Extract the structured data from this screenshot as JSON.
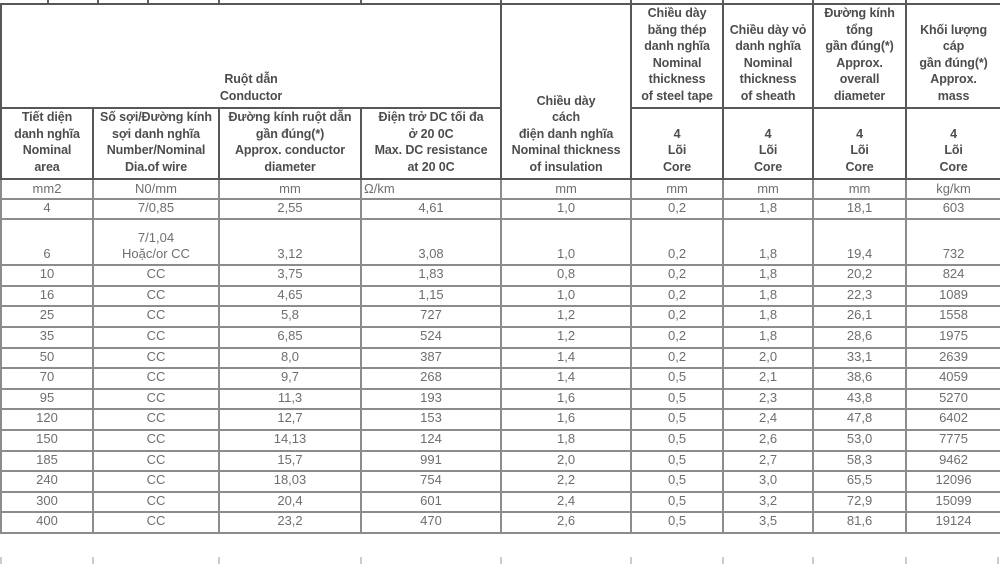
{
  "page": {
    "background": "#ffffff",
    "text_color": "#6e6e6e",
    "header_text_color": "#4d4d4d",
    "border_color": "#8c8c8c",
    "header_border_color": "#575757"
  },
  "table": {
    "headers": {
      "group_conductor": "Ruột dẫn\nConductor",
      "col_nominal_area": "Tiết diện\ndanh nghĩa\nNominal\narea",
      "col_wire": "Số sợi/Đường kính\nsợi danh nghĩa\nNumber/Nominal\nDia.of wire",
      "col_conductor_diameter": "Đường kính ruột dẫn\ngần đúng(*)\nApprox. conductor\ndiameter",
      "col_dc_resistance": "Điện trở DC tối đa\nở 20 0C\nMax. DC resistance\nat 20 0C",
      "col_insulation": "Chiều dày\ncách\nđiện danh nghĩa\nNominal thickness\nof insulation",
      "col_steel_tape": "Chiều dày\nbăng thép\ndanh nghĩa\nNominal\nthickness\nof steel tape",
      "col_sheath": "Chiều dày vỏ\ndanh nghĩa\nNominal\nthickness\nof sheath",
      "col_overall_diameter": "Đường kính\ntổng\ngần đúng(*)\nApprox.\noverall\ndiameter",
      "col_mass": "Khối lượng\ncáp\ngần đúng(*)\nApprox.\nmass",
      "core": "4\nLõi\nCore"
    },
    "units": [
      "mm2",
      "N0/mm",
      "mm",
      "Ω/km",
      "mm",
      "mm",
      "mm",
      "mm",
      "kg/km"
    ],
    "rows": [
      [
        "4",
        "7/0,85",
        "2,55",
        "4,61",
        "1,0",
        "0,2",
        "1,8",
        "18,1",
        "603"
      ],
      [
        "6",
        "7/1,04\nHoặc/or CC",
        "3,12",
        "3,08",
        "1,0",
        "0,2",
        "1,8",
        "19,4",
        "732"
      ],
      [
        "10",
        "CC",
        "3,75",
        "1,83",
        "0,8",
        "0,2",
        "1,8",
        "20,2",
        "824"
      ],
      [
        "16",
        "CC",
        "4,65",
        "1,15",
        "1,0",
        "0,2",
        "1,8",
        "22,3",
        "1089"
      ],
      [
        "25",
        "CC",
        "5,8",
        "727",
        "1,2",
        "0,2",
        "1,8",
        "26,1",
        "1558"
      ],
      [
        "35",
        "CC",
        "6,85",
        "524",
        "1,2",
        "0,2",
        "1,8",
        "28,6",
        "1975"
      ],
      [
        "50",
        "CC",
        "8,0",
        "387",
        "1,4",
        "0,2",
        "2,0",
        "33,1",
        "2639"
      ],
      [
        "70",
        "CC",
        "9,7",
        "268",
        "1,4",
        "0,5",
        "2,1",
        "38,6",
        "4059"
      ],
      [
        "95",
        "CC",
        "11,3",
        "193",
        "1,6",
        "0,5",
        "2,3",
        "43,8",
        "5270"
      ],
      [
        "120",
        "CC",
        "12,7",
        "153",
        "1,6",
        "0,5",
        "2,4",
        "47,8",
        "6402"
      ],
      [
        "150",
        "CC",
        "14,13",
        "124",
        "1,8",
        "0,5",
        "2,6",
        "53,0",
        "7775"
      ],
      [
        "185",
        "CC",
        "15,7",
        "991",
        "2,0",
        "0,5",
        "2,7",
        "58,3",
        "9462"
      ],
      [
        "240",
        "CC",
        "18,03",
        "754",
        "2,2",
        "0,5",
        "3,0",
        "65,5",
        "12096"
      ],
      [
        "300",
        "CC",
        "20,4",
        "601",
        "2,4",
        "0,5",
        "3,2",
        "72,9",
        "15099"
      ],
      [
        "400",
        "CC",
        "23,2",
        "470",
        "2,6",
        "0,5",
        "3,5",
        "81,6",
        "19124"
      ]
    ]
  }
}
